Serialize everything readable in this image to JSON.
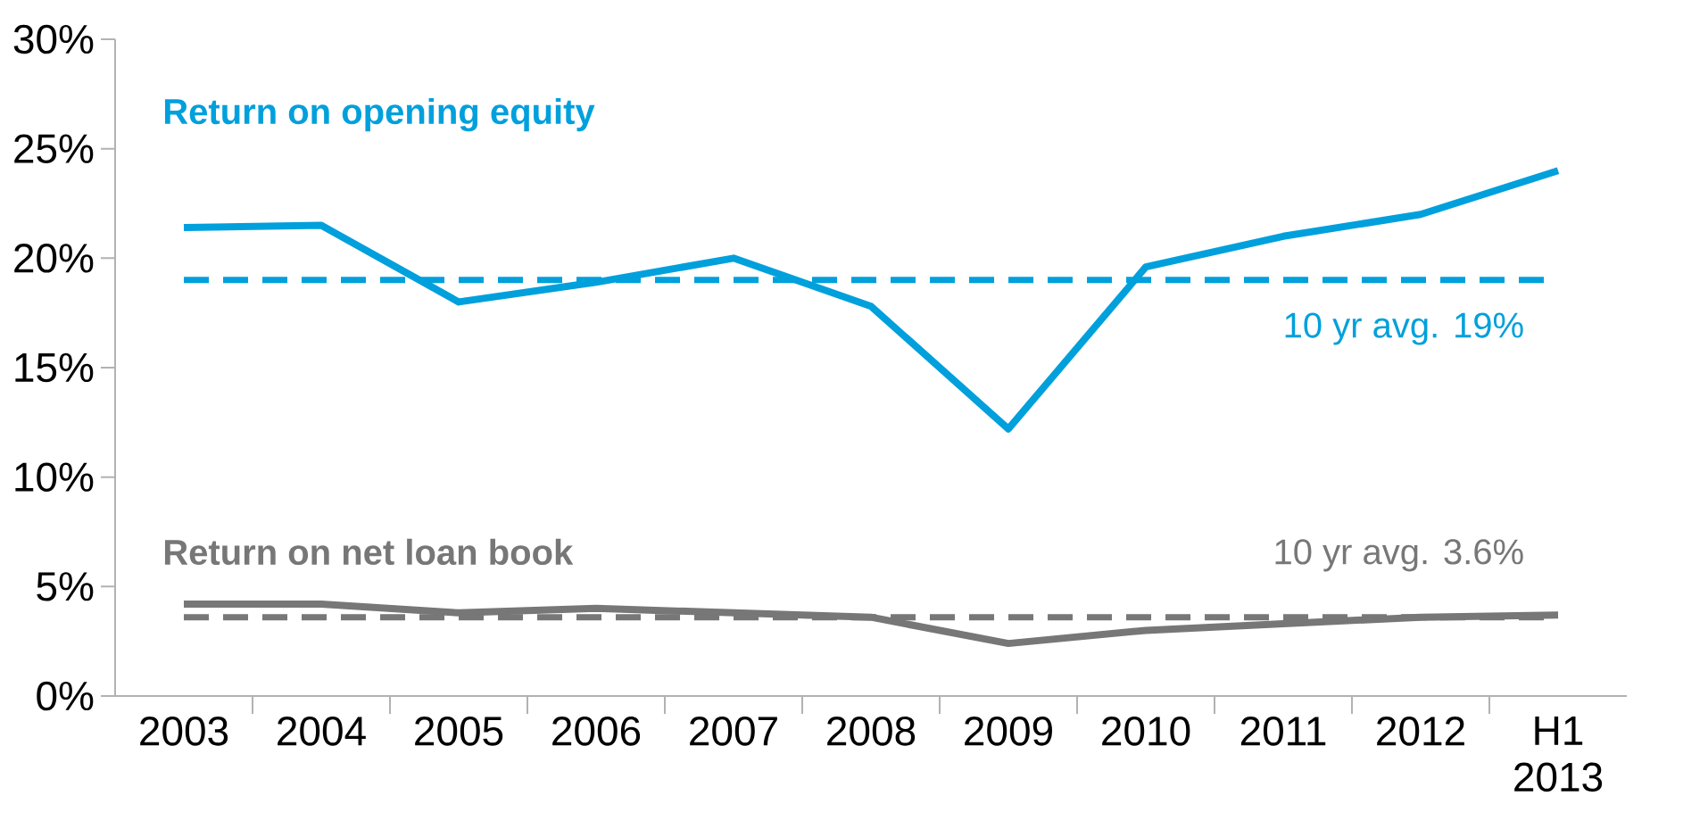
{
  "chart_data": {
    "type": "line",
    "categories": [
      "2003",
      "2004",
      "2005",
      "2006",
      "2007",
      "2008",
      "2009",
      "2010",
      "2011",
      "2012",
      "H1 2013"
    ],
    "series": [
      {
        "name": "Return on opening equity",
        "color": "#00a0dc",
        "values": [
          21.4,
          21.5,
          18.0,
          18.9,
          20.0,
          17.8,
          12.2,
          19.6,
          21.0,
          22.0,
          24.0
        ]
      },
      {
        "name": "Return on net loan book",
        "color": "#777777",
        "values": [
          4.2,
          4.2,
          3.8,
          4.0,
          3.8,
          3.6,
          2.4,
          3.0,
          3.3,
          3.6,
          3.7
        ]
      }
    ],
    "ref_lines": [
      {
        "axis": "y",
        "value": 19,
        "label": "10 yr avg. 19%",
        "color": "#00a0dc",
        "line_style": "dashed"
      },
      {
        "axis": "y",
        "value": 3.6,
        "label": "10 yr avg. 3.6%",
        "color": "#777777",
        "line_style": "dashed"
      }
    ],
    "ylim": [
      0,
      30
    ],
    "yticks": [
      {
        "value": 0,
        "label": "0%"
      },
      {
        "value": 5,
        "label": "5%"
      },
      {
        "value": 10,
        "label": "10%"
      },
      {
        "value": 15,
        "label": "15%"
      },
      {
        "value": 20,
        "label": "20%"
      },
      {
        "value": 25,
        "label": "25%"
      },
      {
        "value": 30,
        "label": "30%"
      }
    ],
    "grid": false,
    "legend": false,
    "marker": "none",
    "line_style": "solid"
  }
}
